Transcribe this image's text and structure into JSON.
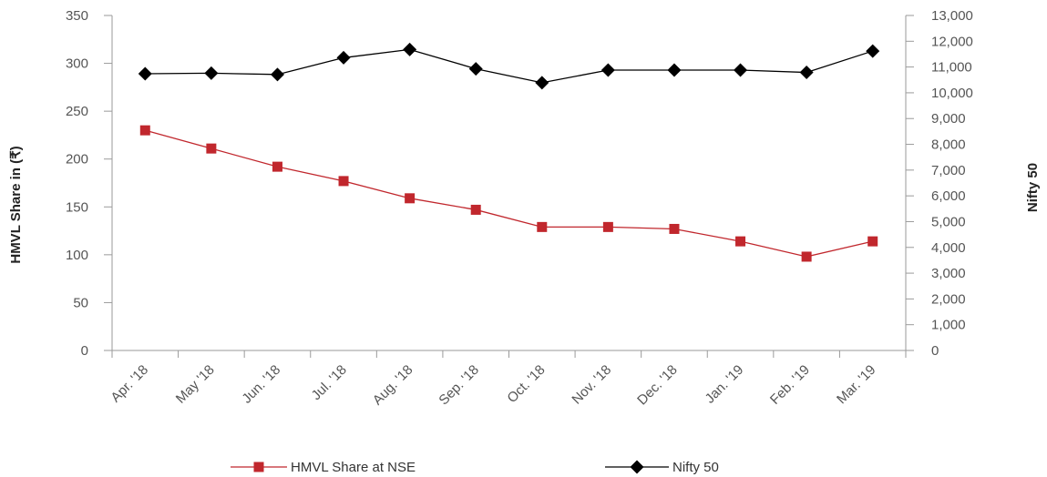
{
  "chart_data": {
    "type": "line",
    "categories": [
      "Apr. '18",
      "May '18",
      "Jun. '18",
      "Jul. '18",
      "Aug. '18",
      "Sep. '18",
      "Oct. '18",
      "Nov. '18",
      "Dec. '18",
      "Jan. '19",
      "Feb. '19",
      "Mar. '19"
    ],
    "series": [
      {
        "name": "HMVL Share at NSE",
        "axis": "left",
        "color": "#c1272d",
        "marker": "square",
        "values": [
          230,
          211,
          192,
          177,
          159,
          147,
          129,
          129,
          127,
          114,
          98,
          114
        ]
      },
      {
        "name": "Nifty 50",
        "axis": "right",
        "color": "#000000",
        "marker": "diamond",
        "values": [
          10740,
          10760,
          10710,
          11360,
          11680,
          10930,
          10390,
          10880,
          10880,
          10880,
          10790,
          11620
        ]
      }
    ],
    "ylabel": "HMVL Share in (₹)",
    "ylabel_right": "Nifty 50",
    "ylim": [
      0,
      350
    ],
    "ylim_right": [
      0,
      13000
    ],
    "yticks": [
      "0",
      "50",
      "100",
      "150",
      "200",
      "250",
      "300",
      "350"
    ],
    "yticks_right": [
      "0",
      "1,000",
      "2,000",
      "3,000",
      "4,000",
      "5,000",
      "6,000",
      "7,000",
      "8,000",
      "9,000",
      "10,000",
      "11,000",
      "12,000",
      "13,000"
    ],
    "grid": false,
    "legend": "bottom"
  }
}
